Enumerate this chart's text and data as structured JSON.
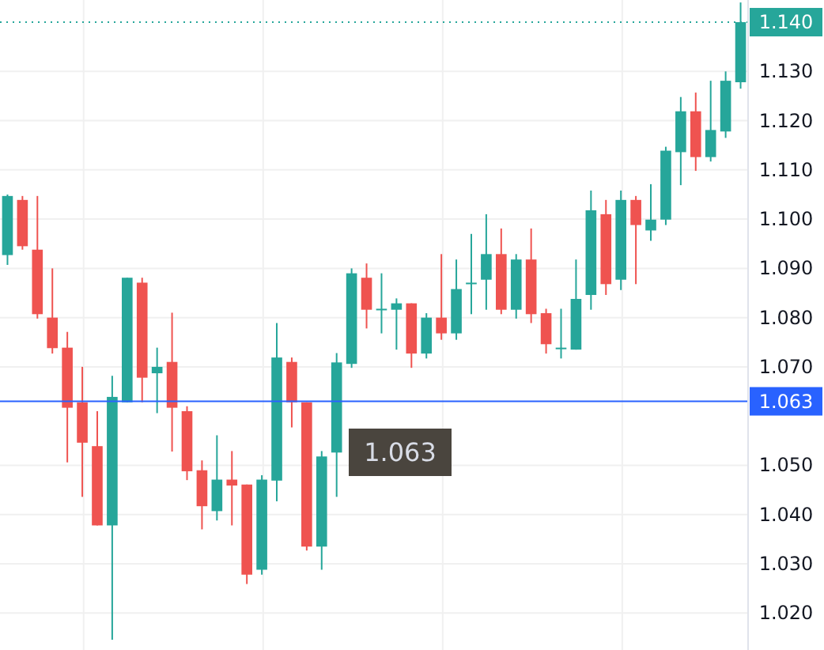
{
  "chart_data": {
    "type": "candlestick",
    "categories": [
      null,
      null,
      null,
      null,
      null,
      null,
      null,
      null,
      null,
      null,
      null,
      null,
      null,
      null,
      null,
      null,
      null,
      null,
      null,
      null,
      null,
      null,
      null,
      null,
      null,
      null,
      null,
      null,
      null,
      null,
      null,
      null,
      null,
      null,
      null,
      null,
      null,
      null,
      null,
      null,
      null,
      null,
      null,
      null,
      null,
      null,
      null,
      null,
      null,
      null
    ],
    "ohlc": [
      [
        1.0927,
        1.105,
        1.0907,
        1.1047
      ],
      [
        1.1039,
        1.1047,
        1.0938,
        1.0945
      ],
      [
        1.0938,
        1.1047,
        1.0798,
        1.0807
      ],
      [
        1.08,
        1.09,
        1.0727,
        1.0738
      ],
      [
        1.0739,
        1.0771,
        1.0506,
        1.0617
      ],
      [
        1.0628,
        1.07,
        1.0436,
        1.0546
      ],
      [
        1.0539,
        1.061,
        1.0378,
        1.0378
      ],
      [
        1.0378,
        1.0682,
        1.0146,
        1.0639
      ],
      [
        1.0628,
        1.0881,
        1.0628,
        1.0881
      ],
      [
        1.0871,
        1.0881,
        1.0628,
        1.0678
      ],
      [
        1.0687,
        1.0739,
        1.0606,
        1.07
      ],
      [
        1.071,
        1.081,
        1.0528,
        1.0617
      ],
      [
        1.061,
        1.062,
        1.047,
        1.0488
      ],
      [
        1.049,
        1.051,
        1.037,
        1.0417
      ],
      [
        1.0407,
        1.0561,
        1.0388,
        1.0471
      ],
      [
        1.0471,
        1.0529,
        1.0378,
        1.0459
      ],
      [
        1.0461,
        1.0461,
        1.0259,
        1.0278
      ],
      [
        1.0288,
        1.048,
        1.0278,
        1.0471
      ],
      [
        1.0469,
        1.0789,
        1.0427,
        1.0719
      ],
      [
        1.071,
        1.0719,
        1.0577,
        1.0628
      ],
      [
        1.0628,
        1.0628,
        1.0327,
        1.0335
      ],
      [
        1.0335,
        1.0529,
        1.0288,
        1.0518
      ],
      [
        1.0526,
        1.0728,
        1.0436,
        1.0709
      ],
      [
        1.0706,
        1.09,
        1.0698,
        1.089
      ],
      [
        1.0881,
        1.091,
        1.0778,
        1.0816
      ],
      [
        1.0815,
        1.089,
        1.0768,
        1.0818
      ],
      [
        1.0816,
        1.0839,
        1.0735,
        1.0829
      ],
      [
        1.0829,
        1.0829,
        1.0698,
        1.0727
      ],
      [
        1.0727,
        1.0809,
        1.0717,
        1.08
      ],
      [
        1.08,
        1.0929,
        1.0755,
        1.0768
      ],
      [
        1.0768,
        1.0918,
        1.0755,
        1.0858
      ],
      [
        1.0868,
        1.097,
        1.0807,
        1.0871
      ],
      [
        1.0877,
        1.101,
        1.0816,
        1.0929
      ],
      [
        1.0929,
        1.0981,
        1.0807,
        1.0816
      ],
      [
        1.0816,
        1.0929,
        1.0798,
        1.0918
      ],
      [
        1.0918,
        1.0981,
        1.0789,
        1.0807
      ],
      [
        1.0809,
        1.0818,
        1.0727,
        1.0746
      ],
      [
        1.0737,
        1.0818,
        1.0717,
        1.0739
      ],
      [
        1.0735,
        1.0918,
        1.0735,
        1.0838
      ],
      [
        1.0846,
        1.1058,
        1.0816,
        1.1018
      ],
      [
        1.101,
        1.1039,
        1.0846,
        1.0868
      ],
      [
        1.0877,
        1.1058,
        1.0856,
        1.1039
      ],
      [
        1.1039,
        1.1047,
        1.0868,
        1.0988
      ],
      [
        1.0977,
        1.1071,
        1.0956,
        1.0999
      ],
      [
        1.0999,
        1.1147,
        1.0988,
        1.1139
      ],
      [
        1.1136,
        1.1248,
        1.1069,
        1.1219
      ],
      [
        1.1219,
        1.1257,
        1.1098,
        1.1126
      ],
      [
        1.1126,
        1.1281,
        1.1117,
        1.1181
      ],
      [
        1.1178,
        1.13,
        1.1165,
        1.1281
      ],
      [
        1.1278,
        1.144,
        1.1265,
        1.14
      ]
    ],
    "colors": [
      "#26a69a",
      "#ef5350",
      "#ef5350",
      "#ef5350",
      "#ef5350",
      "#ef5350",
      "#ef5350",
      "#26a69a",
      "#26a69a",
      "#ef5350",
      "#26a69a",
      "#ef5350",
      "#ef5350",
      "#ef5350",
      "#26a69a",
      "#ef5350",
      "#ef5350",
      "#26a69a",
      "#26a69a",
      "#ef5350",
      "#ef5350",
      "#26a69a",
      "#26a69a",
      "#26a69a",
      "#ef5350",
      "#26a69a",
      "#26a69a",
      "#ef5350",
      "#26a69a",
      "#ef5350",
      "#26a69a",
      "#26a69a",
      "#26a69a",
      "#ef5350",
      "#26a69a",
      "#ef5350",
      "#ef5350",
      "#26a69a",
      "#26a69a",
      "#26a69a",
      "#ef5350",
      "#26a69a",
      "#ef5350",
      "#26a69a",
      "#26a69a",
      "#26a69a",
      "#ef5350",
      "#26a69a",
      "#26a69a",
      "#26a69a"
    ],
    "ylim": [
      1.0125,
      1.1445
    ],
    "yticks": [
      {
        "value": 1.02,
        "label": "1.020"
      },
      {
        "value": 1.03,
        "label": "1.030"
      },
      {
        "value": 1.04,
        "label": "1.040"
      },
      {
        "value": 1.05,
        "label": "1.050"
      },
      {
        "value": 1.07,
        "label": "1.070"
      },
      {
        "value": 1.08,
        "label": "1.080"
      },
      {
        "value": 1.09,
        "label": "1.090"
      },
      {
        "value": 1.1,
        "label": "1.100"
      },
      {
        "value": 1.11,
        "label": "1.110"
      },
      {
        "value": 1.12,
        "label": "1.120"
      },
      {
        "value": 1.13,
        "label": "1.130"
      }
    ],
    "ref_lines": [
      {
        "axis": "y",
        "value": 1.14,
        "label": "1.140",
        "color": "#26a69a",
        "line_style": "dotted"
      },
      {
        "axis": "y",
        "value": 1.063,
        "label": "1.063",
        "color": "#2962ff",
        "line_style": "solid"
      }
    ],
    "annotations": [
      "1.063"
    ],
    "grid": true,
    "tick_labels": "y"
  }
}
